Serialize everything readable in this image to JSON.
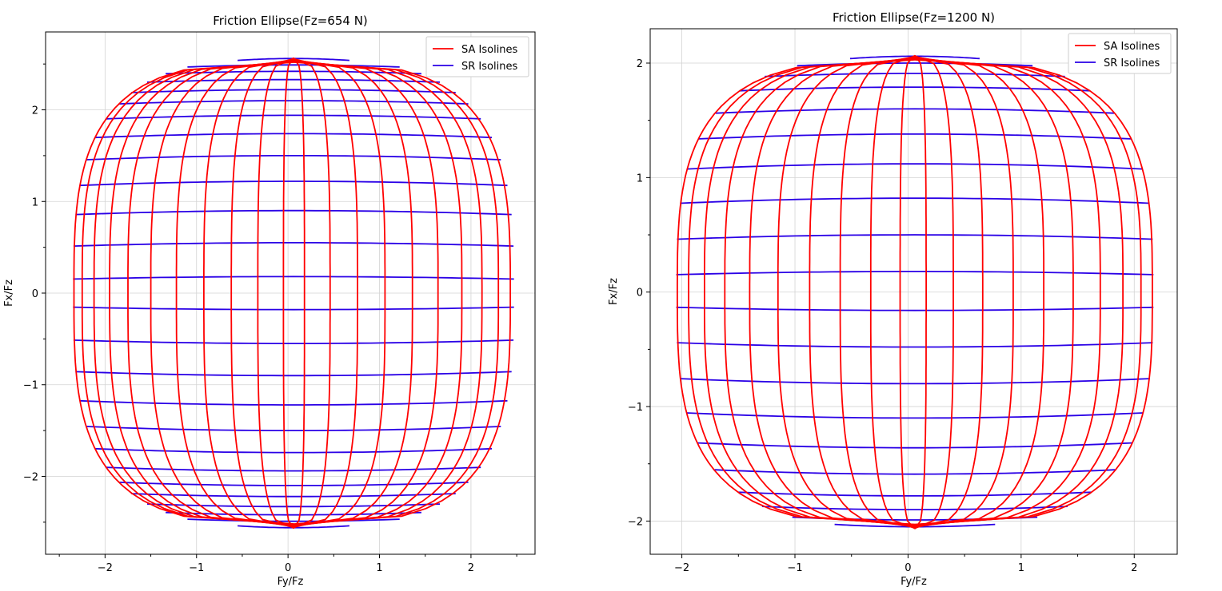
{
  "chart_data": [
    {
      "type": "line",
      "title": "Friction Ellipse(Fz=654 N)",
      "xlabel": "Fy/Fz",
      "ylabel": "Fx/Fz",
      "xlim": [
        -2.65,
        2.7
      ],
      "ylim": [
        -2.85,
        2.85
      ],
      "xticks": [
        -2,
        -1,
        0,
        1,
        2
      ],
      "yticks": [
        -2,
        -1,
        0,
        1,
        2
      ],
      "xtick_labels": [
        "−2",
        "−1",
        "0",
        "1",
        "2"
      ],
      "ytick_labels": [
        "−2",
        "−1",
        "0",
        "1",
        "2"
      ],
      "grid": true,
      "legend_position": "top-right",
      "envelope": {
        "x_left": -2.35,
        "x_right": 2.47,
        "y_top": 2.57,
        "y_bottom": -2.57,
        "x_center": 0.06
      },
      "sa_isoline_x_at_center": [
        -2.34,
        -2.25,
        -2.12,
        -1.95,
        -1.75,
        -1.5,
        -1.22,
        -0.92,
        -0.62,
        -0.33,
        -0.05,
        0.18,
        0.46,
        0.76,
        1.06,
        1.36,
        1.64,
        1.9,
        2.12,
        2.3,
        2.43
      ],
      "sr_isoline_y_at_center": [
        2.56,
        2.49,
        2.42,
        2.33,
        2.22,
        2.1,
        1.94,
        1.74,
        1.5,
        1.22,
        0.9,
        0.55,
        0.18,
        -0.18,
        -0.55,
        -0.9,
        -1.22,
        -1.5,
        -1.74,
        -1.94,
        -2.1,
        -2.22,
        -2.33,
        -2.42,
        -2.49,
        -2.56
      ],
      "series": [
        {
          "name": "SA Isolines",
          "color": "#ff0000"
        },
        {
          "name": "SR Isolines",
          "color": "#2a00e6"
        }
      ]
    },
    {
      "type": "line",
      "title": "Friction Ellipse(Fz=1200 N)",
      "xlabel": "Fy/Fz",
      "ylabel": "Fx/Fz",
      "xlim": [
        -2.28,
        2.38
      ],
      "ylim": [
        -2.29,
        2.3
      ],
      "xticks": [
        -2,
        -1,
        0,
        1,
        2
      ],
      "yticks": [
        -2,
        -1,
        0,
        1,
        2
      ],
      "xtick_labels": [
        "−2",
        "−1",
        "0",
        "1",
        "2"
      ],
      "ytick_labels": [
        "−2",
        "−1",
        "0",
        "1",
        "2"
      ],
      "grid": true,
      "legend_position": "top-right",
      "envelope": {
        "x_left": -2.05,
        "x_right": 2.17,
        "y_top": 2.07,
        "y_bottom": -2.07,
        "x_center": 0.06
      },
      "sa_isoline_x_at_center": [
        -2.04,
        -1.94,
        -1.8,
        -1.62,
        -1.4,
        -1.15,
        -0.87,
        -0.6,
        -0.33,
        -0.07,
        0.16,
        0.4,
        0.66,
        0.93,
        1.2,
        1.46,
        1.7,
        1.9,
        2.06,
        2.16
      ],
      "sr_isoline_y_at_center": [
        2.06,
        2.0,
        1.91,
        1.79,
        1.6,
        1.38,
        1.12,
        0.82,
        0.5,
        0.18,
        -0.16,
        -0.48,
        -0.8,
        -1.1,
        -1.36,
        -1.59,
        -1.78,
        -1.9,
        -1.99,
        -2.05
      ],
      "series": [
        {
          "name": "SA Isolines",
          "color": "#ff0000"
        },
        {
          "name": "SR Isolines",
          "color": "#2a00e6"
        }
      ]
    }
  ]
}
